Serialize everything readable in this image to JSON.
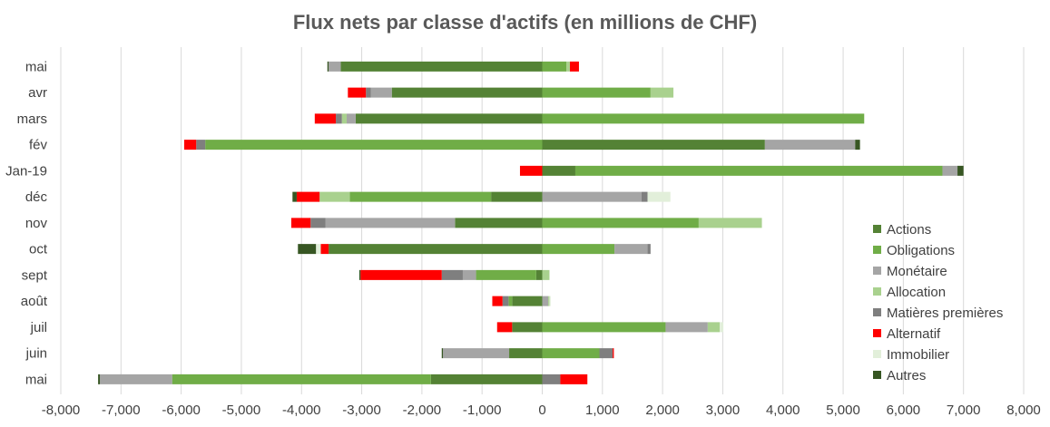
{
  "chart_data": {
    "type": "bar",
    "orientation": "horizontal",
    "stacked": true,
    "title": "Flux nets par classe d'actifs (en millions de CHF)",
    "categories": [
      "mai",
      "juin",
      "juil",
      "août",
      "sept",
      "oct",
      "nov",
      "déc",
      "Jan-19",
      "fév",
      "mars",
      "avr",
      "mai"
    ],
    "xlim": [
      -8000,
      8000
    ],
    "xticks": [
      "-8,000",
      "-7,000",
      "-6,000",
      "-5,000",
      "-4,000",
      "-3,000",
      "-2,000",
      "-1,000",
      "0",
      "1,000",
      "2,000",
      "3,000",
      "4,000",
      "5,000",
      "6,000",
      "7,000",
      "8,000"
    ],
    "grid": true,
    "legend_position": "right",
    "series": [
      {
        "name": "Actions",
        "color": "#548235",
        "values": [
          -1850,
          -550,
          -500,
          -500,
          -100,
          -3550,
          -1450,
          -850,
          550,
          3700,
          -3100,
          -2500,
          -3350
        ]
      },
      {
        "name": "Obligations",
        "color": "#70ad47",
        "values": [
          -4300,
          950,
          2050,
          -60,
          -1000,
          1200,
          2600,
          -2350,
          6100,
          -5600,
          5350,
          1800,
          400
        ]
      },
      {
        "name": "Monétaire",
        "color": "#a5a5a5",
        "values": [
          -1200,
          -1100,
          700,
          100,
          -220,
          550,
          -2150,
          1650,
          250,
          1500,
          -150,
          -350,
          -200
        ]
      },
      {
        "name": "Allocation",
        "color": "#a9d18e",
        "values": [
          0,
          0,
          200,
          20,
          120,
          0,
          1050,
          -500,
          0,
          0,
          -80,
          380,
          60
        ]
      },
      {
        "name": "Matières premières",
        "color": "#7f7f7f",
        "values": [
          300,
          220,
          0,
          -100,
          -350,
          50,
          -250,
          100,
          0,
          -150,
          -100,
          -80,
          0
        ]
      },
      {
        "name": "Alternatif",
        "color": "#ff0000",
        "values": [
          450,
          20,
          -250,
          -170,
          -1350,
          -130,
          -320,
          -380,
          -370,
          -200,
          -350,
          -300,
          150
        ]
      },
      {
        "name": "Immobilier",
        "color": "#e2efda",
        "values": [
          0,
          0,
          60,
          20,
          0,
          -80,
          0,
          380,
          0,
          0,
          0,
          0,
          0
        ]
      },
      {
        "name": "Autres",
        "color": "#375623",
        "values": [
          -30,
          -20,
          0,
          0,
          -20,
          -300,
          0,
          -70,
          100,
          80,
          0,
          0,
          -20
        ]
      }
    ]
  }
}
